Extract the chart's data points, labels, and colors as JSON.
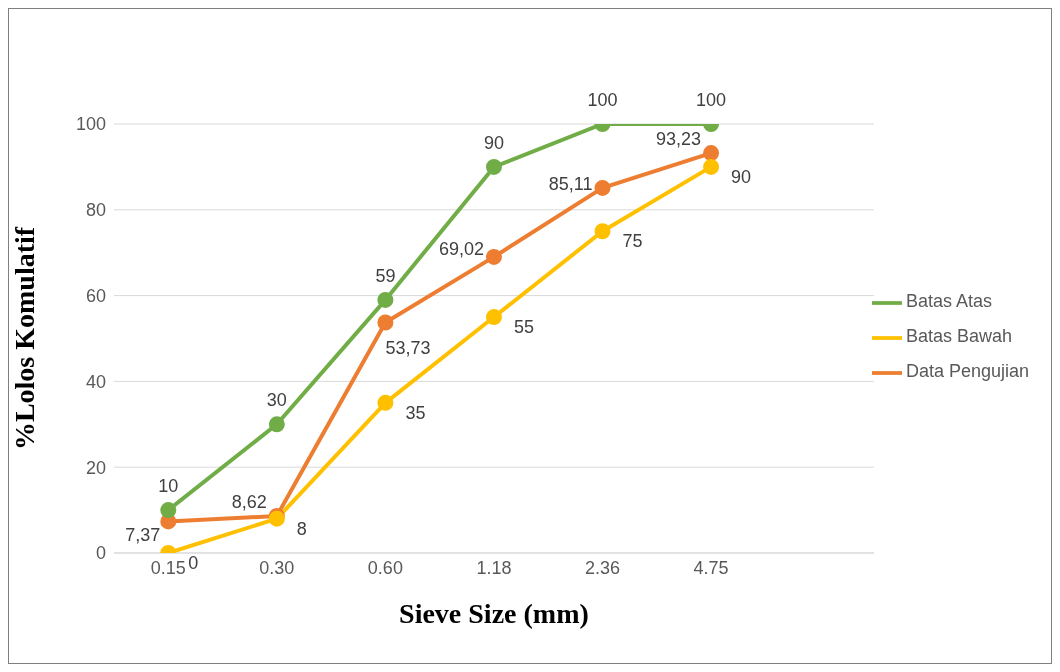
{
  "chart_data": {
    "type": "line",
    "xlabel": "Sieve Size (mm)",
    "ylabel": "%Lolos Komulatif",
    "categories": [
      "0.15",
      "0.30",
      "0.60",
      "1.18",
      "2.36",
      "4.75"
    ],
    "series": [
      {
        "name": "Data Pengujian",
        "color": "#ed7d31",
        "values": [
          7.37,
          8.62,
          53.73,
          69.02,
          85.11,
          93.23
        ],
        "value_labels": [
          "7,37",
          "8,62",
          "53,73",
          "69,02",
          "85,11",
          "93,23"
        ]
      },
      {
        "name": "Batas Bawah",
        "color": "#ffc000",
        "values": [
          0,
          8,
          35,
          55,
          75,
          90
        ],
        "value_labels": [
          "0",
          "8",
          "35",
          "55",
          "75",
          "90"
        ]
      },
      {
        "name": "Batas Atas",
        "color": "#70ad47",
        "values": [
          10,
          30,
          59,
          90,
          100,
          100
        ],
        "value_labels": [
          "10",
          "30",
          "59",
          "90",
          "100",
          "100"
        ]
      }
    ],
    "ylim": [
      0,
      100
    ],
    "yticks": [
      0,
      20,
      40,
      60,
      80,
      100
    ],
    "grid": "y",
    "legend": "right",
    "marker": "circle",
    "line_style": "solid"
  }
}
